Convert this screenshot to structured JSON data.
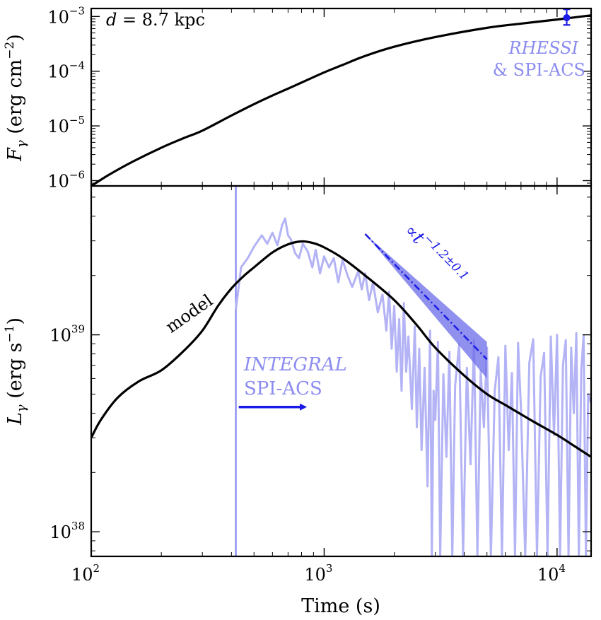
{
  "chart_data": [
    {
      "type": "line",
      "panel": "top",
      "ylabel": "F_γ (erg cm^−2)",
      "yscale": "log",
      "xscale": "log",
      "xlim": [
        100,
        14000
      ],
      "ylim": [
        8e-07,
        0.0014
      ],
      "yticks": [
        {
          "base": "10",
          "exp": "−3",
          "value": 0.001
        },
        {
          "base": "10",
          "exp": "−4",
          "value": 0.0001
        },
        {
          "base": "10",
          "exp": "−5",
          "value": 1e-05
        },
        {
          "base": "10",
          "exp": "−6",
          "value": 1e-06
        }
      ],
      "annotation": "d = 8.7 kpc",
      "series": [
        {
          "color": "#000000",
          "x": [
            100,
            120,
            150,
            200,
            250,
            300,
            400,
            500,
            600,
            700,
            800,
            1000,
            1200,
            1500,
            2000,
            3000,
            5000,
            7000,
            10000,
            14000
          ],
          "y": [
            8e-07,
            1.3e-06,
            2.2e-06,
            4e-06,
            6e-06,
            8.2e-06,
            1.55e-05,
            2.5e-05,
            3.6e-05,
            4.8e-05,
            6.2e-05,
            9.5e-05,
            0.00013,
            0.00019,
            0.00028,
            0.00042,
            0.00062,
            0.00074,
            0.00088,
            0.00105
          ]
        },
        {
          "name": "RHESSI & SPI-ACS",
          "color": "#1a1ae6",
          "type": "errorbar",
          "x": [
            11000
          ],
          "y": [
            0.00095
          ],
          "yerr_low": [
            0.0007
          ],
          "yerr_high": [
            0.00135
          ]
        }
      ],
      "legend": {
        "line1": "RHESSI",
        "line2": "& SPI-ACS",
        "color": "#8c8cf0"
      }
    },
    {
      "type": "line",
      "panel": "bottom",
      "xlabel": "Time (s)",
      "ylabel": "L_γ (erg s^−1)",
      "yscale": "log",
      "xscale": "log",
      "xlim": [
        100,
        14000
      ],
      "ylim": [
        7.5e+37,
        5.7e+39
      ],
      "xticks": [
        {
          "base": "10",
          "exp": "2",
          "value": 100
        },
        {
          "base": "10",
          "exp": "3",
          "value": 1000
        },
        {
          "base": "10",
          "exp": "4",
          "value": 10000
        }
      ],
      "yticks": [
        {
          "base": "10",
          "exp": "39",
          "value": 1e+39
        },
        {
          "base": "10",
          "exp": "38",
          "value": 1e+38
        }
      ],
      "series": [
        {
          "name": "model",
          "color": "#000000",
          "x": [
            100,
            110,
            130,
            160,
            200,
            250,
            300,
            350,
            400,
            450,
            500,
            600,
            700,
            800,
            900,
            1000,
            1200,
            1500,
            2000,
            2500,
            3000,
            4000,
            5000,
            6000,
            7000,
            8000,
            10000,
            12000,
            14000
          ],
          "y": [
            3e+38,
            3.7e+38,
            4.8e+38,
            5.8e+38,
            6.6e+38,
            8.3e+38,
            1.05e+39,
            1.4e+39,
            1.72e+39,
            1.98e+39,
            2.2e+39,
            2.62e+39,
            2.88e+39,
            2.98e+39,
            2.92e+39,
            2.78e+39,
            2.45e+39,
            2e+39,
            1.5e+39,
            1.12e+39,
            8.6e+38,
            6.2e+38,
            5e+38,
            4.4e+38,
            3.95e+38,
            3.6e+38,
            3.1e+38,
            2.7e+38,
            2.4e+38
          ]
        },
        {
          "name": "INTEGRAL SPI-ACS",
          "color": "#b3b3f5",
          "x": [
            418,
            440,
            470,
            500,
            540,
            570,
            600,
            630,
            660,
            680,
            700,
            720,
            750,
            780,
            810,
            850,
            890,
            920,
            960,
            1000,
            1050,
            1100,
            1150,
            1200,
            1260,
            1320,
            1400,
            1450,
            1500,
            1560,
            1620,
            1700,
            1780,
            1850,
            1900,
            1950,
            2000,
            2050,
            2100,
            2150,
            2200,
            2250,
            2300,
            2380,
            2450,
            2500,
            2560,
            2620,
            2700,
            2780,
            2850,
            2900,
            2950,
            3000,
            3080,
            3150,
            3250,
            3350,
            3450,
            3550,
            3650,
            3800,
            3950,
            4100,
            4250,
            4400,
            4550,
            4700,
            4850,
            5000,
            5200,
            5400,
            5600,
            5800,
            6000,
            6200,
            6400,
            6600,
            6800,
            7000,
            7300,
            7600,
            7900,
            8200,
            8500,
            8800,
            9100,
            9400,
            9700,
            10000,
            10300,
            10600,
            10900,
            11200,
            11500,
            11800,
            12100,
            12400,
            12700,
            13000,
            13300,
            13600,
            14000
          ],
          "y": [
            1.35e+39,
            2.2e+39,
            2.45e+39,
            2.8e+39,
            3.2e+39,
            2.9e+39,
            3.3e+39,
            2.85e+39,
            3.6e+39,
            3.9e+39,
            3.2e+39,
            3.05e+39,
            2.6e+39,
            2.45e+39,
            2.9e+39,
            2.65e+39,
            2.2e+39,
            2.7e+39,
            2.05e+39,
            2.5e+39,
            2.2e+39,
            2.45e+39,
            1.85e+39,
            2.4e+39,
            2e+39,
            1.75e+39,
            2.1e+39,
            1.7e+39,
            2.05e+39,
            1.5e+39,
            1.85e+39,
            1.3e+39,
            1.6e+39,
            1.05e+39,
            1.65e+39,
            8.5e+38,
            1.4e+39,
            6.5e+38,
            1.2e+39,
            5.2e+38,
            1.45e+39,
            6.5e+38,
            9.8e+38,
            4.2e+38,
            1.1e+39,
            3.4e+38,
            8.5e+38,
            2.6e+38,
            6.8e+38,
            1.7e+38,
            1.05e+39,
            7.5e+37,
            5.2e+38,
            3.7e+38,
            9.2e+38,
            7.5e+37,
            6.3e+38,
            2.4e+38,
            8.2e+38,
            7.5e+37,
            5.5e+38,
            9e+38,
            7.5e+37,
            6.8e+38,
            2.2e+38,
            9.4e+38,
            7.5e+37,
            6.6e+38,
            3.4e+38,
            8.6e+38,
            7.5e+37,
            5.2e+38,
            7.7e+38,
            7.5e+37,
            8.8e+38,
            2.6e+38,
            6.4e+38,
            7.5e+37,
            9.1e+38,
            4.2e+38,
            7.5e+37,
            7.2e+38,
            9.5e+38,
            7.5e+37,
            6.1e+38,
            8.1e+38,
            7.5e+37,
            9.8e+38,
            3.1e+38,
            1e+39,
            7.5e+37,
            7e+38,
            9.4e+38,
            7.5e+37,
            8.6e+38,
            4e+38,
            1.02e+39,
            7.5e+37,
            6.6e+38,
            9.9e+38,
            7.5e+37,
            5e+38,
            4.5e+38
          ]
        },
        {
          "name": "power law",
          "color": "#1a1ae6",
          "type": "band",
          "x": [
            1500,
            5000
          ],
          "y": [
            3.25e+39,
            7.5e+38
          ],
          "band_upper": [
            3.25e+39,
            9.2e+38
          ],
          "band_lower": [
            3.25e+39,
            6e+38
          ]
        }
      ],
      "annotations": {
        "model_label": "model",
        "integral_line1": "INTEGRAL",
        "integral_line2": "SPI-ACS",
        "integral_start": 418,
        "arrow_from": 430,
        "arrow_to": 820,
        "arrow_y": 4.3e+38,
        "powerlaw_prefix": "∝",
        "powerlaw_var": "t",
        "powerlaw_exp": "−1.2±0.1"
      }
    }
  ]
}
